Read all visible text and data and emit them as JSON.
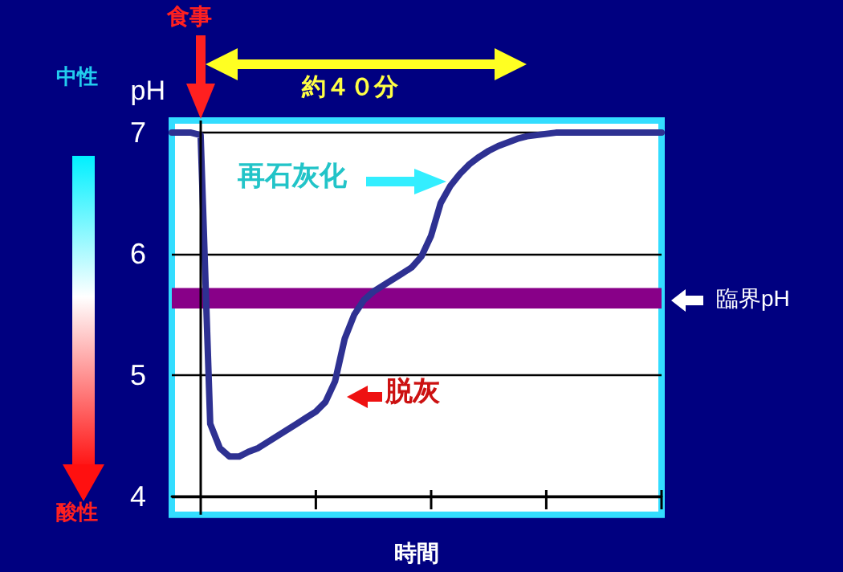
{
  "chart_data": {
    "type": "line",
    "ylabel": "pH",
    "xlabel": "時間",
    "categories": [
      null,
      null,
      null,
      null,
      null,
      null,
      null,
      null,
      null,
      null,
      null,
      null,
      null,
      null,
      null,
      null,
      null,
      null,
      null,
      null,
      null,
      null,
      null,
      null,
      null,
      null,
      null,
      null,
      null,
      null,
      null,
      null,
      null,
      null,
      null,
      null,
      null,
      null,
      null,
      null,
      null,
      null,
      null,
      null,
      null,
      null,
      null,
      null,
      null,
      null,
      null,
      null
    ],
    "values": [
      7.0,
      7.0,
      7.0,
      6.98,
      4.6,
      4.4,
      4.33,
      4.33,
      4.37,
      4.4,
      4.45,
      4.5,
      4.55,
      4.6,
      4.65,
      4.7,
      4.78,
      4.95,
      5.3,
      5.5,
      5.62,
      5.69,
      5.74,
      5.79,
      5.84,
      5.89,
      5.98,
      6.15,
      6.42,
      6.56,
      6.66,
      6.74,
      6.8,
      6.85,
      6.89,
      6.92,
      6.95,
      6.97,
      6.98,
      6.99,
      7.0,
      7.0,
      7.0,
      7.0,
      7.0,
      7.0,
      7.0,
      7.0,
      7.0,
      7.0,
      7.0,
      7.0
    ],
    "color": "#2e3192",
    "ylim": [
      3.85,
      7.1
    ],
    "yticks": [
      4,
      5,
      6,
      7
    ],
    "grid": "y",
    "tick_labels": "y",
    "bands": [
      {
        "axis": "y",
        "from": 5.55,
        "to": 5.72,
        "label": "臨界pH",
        "color": "#880088"
      }
    ],
    "annotations": [
      "食事",
      "約４０分",
      "再石灰化",
      "脱灰",
      "中性",
      "酸性"
    ]
  }
}
